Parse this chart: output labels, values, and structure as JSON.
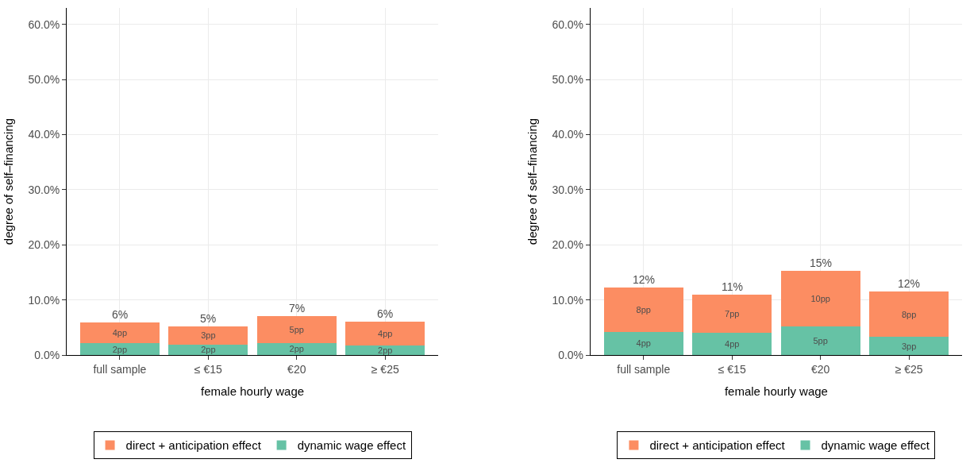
{
  "chart_data": [
    {
      "type": "bar",
      "stacked": true,
      "categories": [
        "full sample",
        "≤ €15",
        "€20",
        "≥ €25"
      ],
      "xlabel": "female hourly wage",
      "ylabel": "degree of self–financing",
      "ylim": [
        0,
        63
      ],
      "yticks": [
        {
          "value": 0,
          "label": "0.0%"
        },
        {
          "value": 10,
          "label": "10.0%"
        },
        {
          "value": 20,
          "label": "20.0%"
        },
        {
          "value": 30,
          "label": "30.0%"
        },
        {
          "value": 40,
          "label": "40.0%"
        },
        {
          "value": 50,
          "label": "50.0%"
        },
        {
          "value": 60,
          "label": "60.0%"
        }
      ],
      "grid": true,
      "legend": "bottom",
      "series": [
        {
          "name": "dynamic wage effect",
          "color": "#66c2a5",
          "values": [
            2.1,
            1.9,
            2.2,
            1.7
          ],
          "value_labels": [
            "2pp",
            "2pp",
            "2pp",
            "2pp"
          ]
        },
        {
          "name": "direct + anticipation effect",
          "color": "#fc8d62",
          "values": [
            3.8,
            3.3,
            4.9,
            4.4
          ],
          "value_labels": [
            "4pp",
            "3pp",
            "5pp",
            "4pp"
          ]
        }
      ],
      "totals": [
        "6%",
        "5%",
        "7%",
        "6%"
      ]
    },
    {
      "type": "bar",
      "stacked": true,
      "categories": [
        "full sample",
        "≤ €15",
        "€20",
        "≥ €25"
      ],
      "xlabel": "female hourly wage",
      "ylabel": "degree of self–financing",
      "ylim": [
        0,
        63
      ],
      "yticks": [
        {
          "value": 0,
          "label": "0.0%"
        },
        {
          "value": 10,
          "label": "10.0%"
        },
        {
          "value": 20,
          "label": "20.0%"
        },
        {
          "value": 30,
          "label": "30.0%"
        },
        {
          "value": 40,
          "label": "40.0%"
        },
        {
          "value": 50,
          "label": "50.0%"
        },
        {
          "value": 60,
          "label": "60.0%"
        }
      ],
      "grid": true,
      "legend": "bottom",
      "series": [
        {
          "name": "dynamic wage effect",
          "color": "#66c2a5",
          "values": [
            4.2,
            4.0,
            5.2,
            3.3
          ],
          "value_labels": [
            "4pp",
            "4pp",
            "5pp",
            "3pp"
          ]
        },
        {
          "name": "direct + anticipation effect",
          "color": "#fc8d62",
          "values": [
            8.1,
            7.0,
            10.1,
            8.2
          ],
          "value_labels": [
            "8pp",
            "7pp",
            "10pp",
            "8pp"
          ]
        }
      ],
      "totals": [
        "12%",
        "11%",
        "15%",
        "12%"
      ]
    }
  ]
}
